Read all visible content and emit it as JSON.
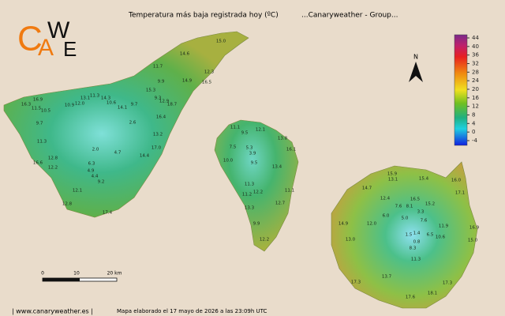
{
  "header": {
    "title": "Temperatura más baja registrada hoy (ºC)",
    "group": "...Canaryweather - Group..."
  },
  "logo": {
    "letters": [
      "C",
      "A",
      "W",
      "E"
    ]
  },
  "north": "N",
  "color_scale": {
    "ticks": [
      44,
      40,
      36,
      32,
      28,
      24,
      20,
      16,
      12,
      8,
      4,
      0,
      -4
    ]
  },
  "scale_bar": {
    "labels": [
      "0",
      "10",
      "20 km"
    ]
  },
  "islands": [
    {
      "stations": [
        "16.9",
        "16.3",
        "11.5",
        "10.5",
        "9.7",
        "10.9",
        "12.0",
        "13.1",
        "11.3",
        "14.3",
        "10.6",
        "14.1",
        "9.7",
        "11.7",
        "9.9",
        "14.6",
        "12.3",
        "14.9",
        "16.5",
        "15.3",
        "9.3",
        "12.9",
        "18.7",
        "2.6",
        "16.4",
        "13.2",
        "11.3",
        "16.6",
        "12.8",
        "12.2",
        "2.0",
        "4.7",
        "17.0",
        "14.4",
        "6.3",
        "4.9",
        "4.4",
        "9.2",
        "12.1",
        "12.8",
        "17.4",
        "15.0"
      ]
    },
    {
      "stations": [
        "11.1",
        "9.5",
        "12.1",
        "7.5",
        "5.3",
        "3.9",
        "16.1",
        "13.8",
        "10.0",
        "9.5",
        "13.4",
        "11.3",
        "12.2",
        "11.2",
        "11.1",
        "12.7",
        "13.3",
        "9.9",
        "12.2"
      ]
    },
    {
      "stations": [
        "15.9",
        "13.1",
        "15.4",
        "16.0",
        "17.1",
        "14.7",
        "16.5",
        "12.4",
        "15.2",
        "6.0",
        "7.6",
        "8.1",
        "5.0",
        "3.3",
        "7.6",
        "11.9",
        "12.0",
        "1.5",
        "1.4",
        "6.5",
        "0.8",
        "10.6",
        "8.3",
        "14.9",
        "13.0",
        "16.9",
        "15.0",
        "11.3",
        "17.3",
        "13.7",
        "17.3",
        "17.6",
        "18.1"
      ]
    }
  ],
  "footer": {
    "site": "| www.canaryweather.es |",
    "note": "Mapa elaborado el 17 mayo de 2026 a las 23:09h UTC"
  }
}
